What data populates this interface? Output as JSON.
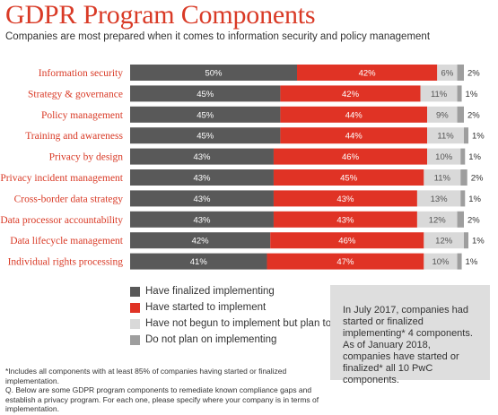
{
  "title": "GDPR Program Components",
  "subtitle": "Companies are most prepared when it comes to information security and policy management",
  "chart_data": {
    "type": "bar",
    "orientation": "horizontal",
    "stacked": true,
    "title": "GDPR Program Components",
    "subtitle": "Companies are most prepared when it comes to information security and policy management",
    "categories": [
      "Information security",
      "Strategy & governance",
      "Policy management",
      "Training and awareness",
      "Privacy by design",
      "Privacy incident management",
      "Cross-border data strategy",
      "Data processor accountability",
      "Data lifecycle management",
      "Individual rights processing"
    ],
    "series": [
      {
        "name": "Have finalized implementing",
        "color": "#595959",
        "values": [
          50,
          45,
          45,
          45,
          43,
          43,
          43,
          43,
          42,
          41
        ]
      },
      {
        "name": "Have started to implement",
        "color": "#e03325",
        "values": [
          42,
          42,
          44,
          44,
          46,
          45,
          43,
          43,
          46,
          47
        ]
      },
      {
        "name": "Have not begun to implement but plan to",
        "color": "#d9d9d9",
        "values": [
          6,
          11,
          9,
          11,
          10,
          11,
          13,
          12,
          12,
          10
        ]
      },
      {
        "name": "Do not plan on implementing",
        "color": "#9e9e9e",
        "values": [
          2,
          1,
          2,
          1,
          1,
          2,
          1,
          2,
          1,
          1
        ]
      }
    ],
    "xlim": [
      0,
      100
    ],
    "value_suffix": "%",
    "grid": false,
    "legend_position": "bottom-left"
  },
  "legend": [
    {
      "label": "Have finalized implementing",
      "color": "#595959"
    },
    {
      "label": "Have started to implement",
      "color": "#e03325"
    },
    {
      "label": "Have not begun to implement but plan to",
      "color": "#d9d9d9"
    },
    {
      "label": "Do not plan on implementing",
      "color": "#9e9e9e"
    }
  ],
  "note_box": "In July 2017, companies had started or finalized implementing* 4 components. As of January 2018, companies have started or finalized* all 10 PwC components.",
  "footnotes": {
    "line1": "*Includes all components with at least 85% of companies having started or finalized implementation.",
    "line2": "Q. Below are some GDPR program components to remediate known compliance gaps and establish a privacy program. For each one, please specify where your company is in terms of implementation."
  }
}
